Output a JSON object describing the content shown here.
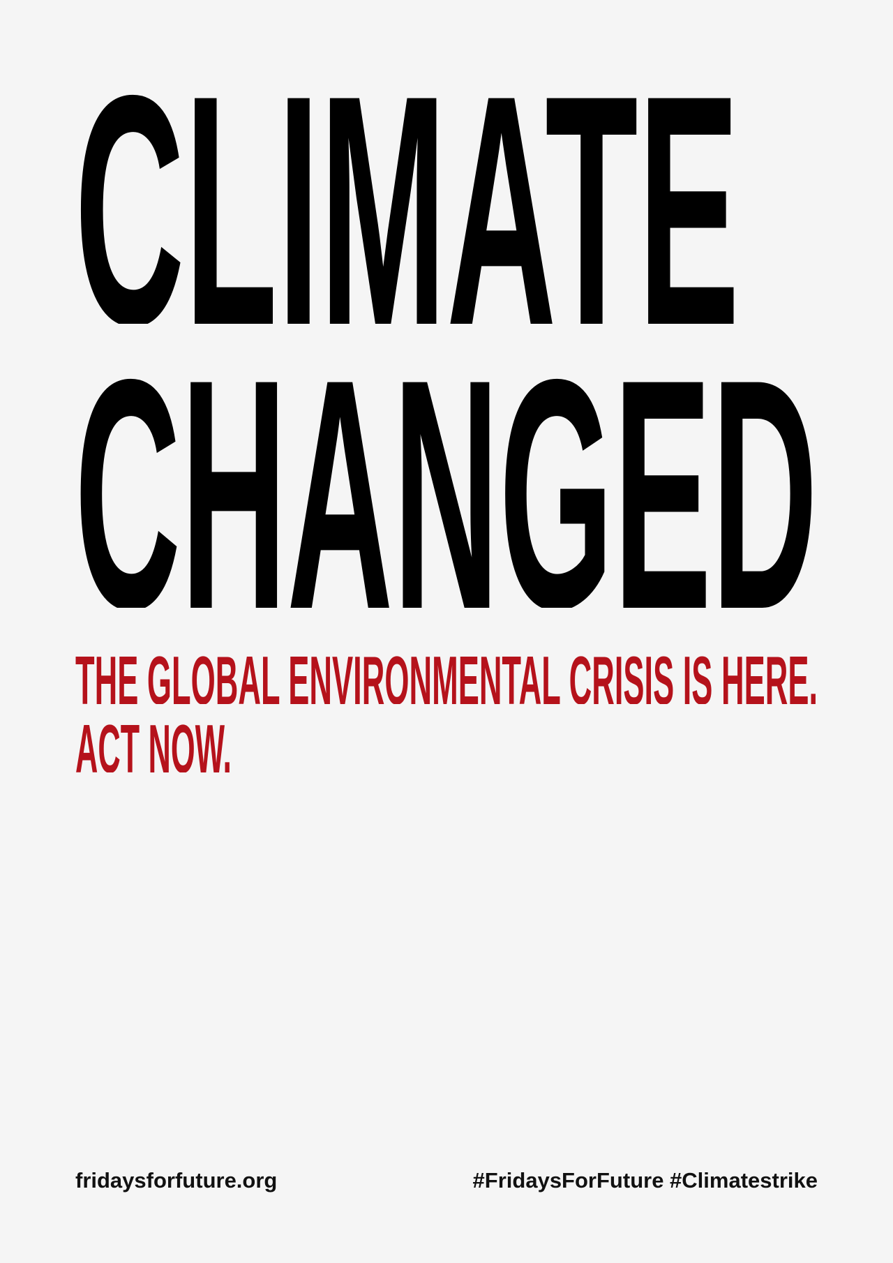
{
  "headline": {
    "line1": "CLIMATE",
    "line2": "CHANGED"
  },
  "subheadline": {
    "line1": "THE GLOBAL ENVIRONMENTAL CRISIS IS HERE.",
    "line2": "ACT NOW."
  },
  "footer": {
    "website": "fridaysforfuture.org",
    "hashtags": "#FridaysForFuture #Climatestrike"
  },
  "colors": {
    "background": "#f5f5f5",
    "headline": "#000000",
    "subheadline": "#b5121b",
    "footer": "#111111"
  }
}
